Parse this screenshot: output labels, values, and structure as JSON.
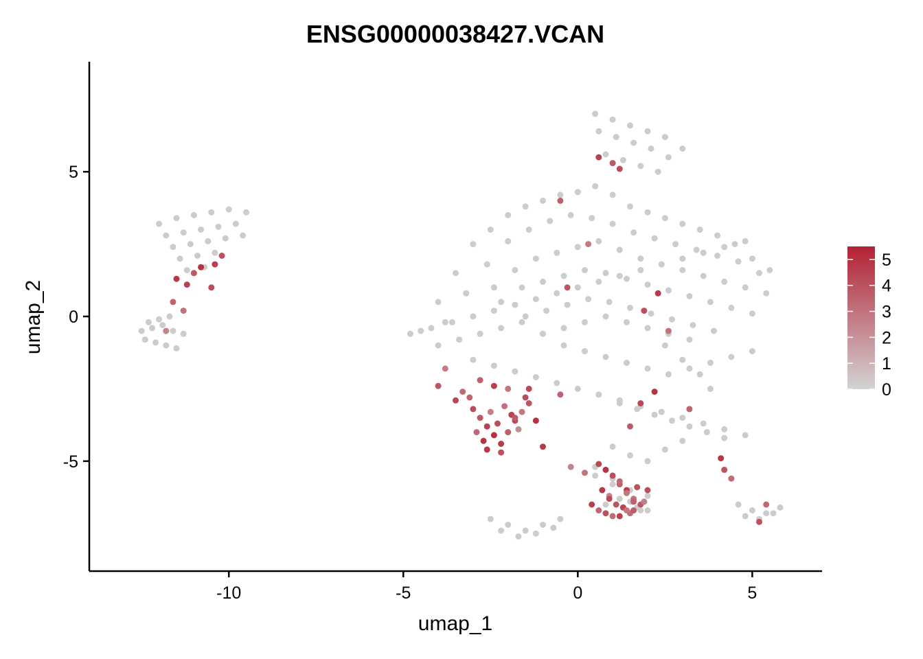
{
  "chart_data": {
    "type": "scatter",
    "title": "ENSG00000038427.VCAN",
    "xlabel": "umap_1",
    "ylabel": "umap_2",
    "xlim": [
      -14.0,
      7.0
    ],
    "ylim": [
      -8.8,
      8.8
    ],
    "x_ticks": [
      -10,
      -5,
      0,
      5
    ],
    "x_tick_labels": [
      "-10",
      "-5",
      "0",
      "5"
    ],
    "y_ticks": [
      -5,
      0,
      5
    ],
    "y_tick_labels": [
      "-5",
      "0",
      "5"
    ],
    "grid": false,
    "legend": {
      "placement": "right",
      "type": "colorbar",
      "min": 0,
      "max": 5.5,
      "ticks": [
        0,
        1,
        2,
        3,
        4,
        5
      ],
      "tick_labels": [
        "0",
        "1",
        "2",
        "3",
        "4",
        "5"
      ],
      "low_color": "#d3d3d3",
      "high_color": "#b22234"
    },
    "colors": {
      "background_point": "#cccccc",
      "high": "#b22234",
      "low": "#d3d3d3"
    },
    "series": [
      {
        "role": "background",
        "x": [
          -12.0,
          -11.5,
          -11.0,
          -10.5,
          -10.0,
          -9.5,
          -11.8,
          -11.3,
          -10.8,
          -10.3,
          -9.8,
          -11.6,
          -11.1,
          -10.6,
          -10.1,
          -9.6,
          -11.4,
          -10.9,
          -10.4,
          -11.2,
          -10.7,
          -12.5,
          -12.2,
          -11.9,
          -11.6,
          -11.3,
          -12.4,
          -12.1,
          -11.8,
          -11.5,
          -12.3,
          -12.0,
          -11.7,
          -4.5,
          -4.0,
          -3.5,
          -3.0,
          -2.5,
          -2.0,
          -1.5,
          -1.0,
          -0.5,
          0.0,
          0.5,
          1.0,
          1.5,
          2.0,
          2.5,
          3.0,
          3.5,
          4.0,
          4.5,
          5.0,
          5.5,
          -3.8,
          -3.2,
          -2.6,
          -2.0,
          -1.4,
          -0.8,
          -0.2,
          0.4,
          1.0,
          1.6,
          2.2,
          2.8,
          3.4,
          4.0,
          4.6,
          5.2,
          -3.0,
          -2.4,
          -1.8,
          -1.2,
          -0.6,
          0.0,
          0.6,
          1.2,
          1.8,
          2.4,
          3.0,
          3.6,
          4.2,
          4.8,
          5.4,
          -2.2,
          -1.6,
          -1.0,
          -0.4,
          0.2,
          0.8,
          1.4,
          2.0,
          2.6,
          3.2,
          3.8,
          4.4,
          5.0,
          -1.5,
          -0.9,
          -0.3,
          0.3,
          0.9,
          1.5,
          2.1,
          2.7,
          3.3,
          3.9,
          -1.0,
          -0.4,
          0.2,
          0.8,
          1.4,
          2.0,
          2.6,
          3.2,
          0.5,
          1.0,
          1.5,
          2.0,
          2.5,
          3.0,
          0.6,
          1.1,
          1.6,
          2.1,
          2.6,
          0.8,
          1.3,
          1.8,
          2.3,
          -4.8,
          -4.2,
          -3.6,
          -3.0,
          -2.4,
          -1.8,
          -1.2,
          -0.6,
          0.0,
          0.6,
          1.2,
          1.8,
          2.4,
          3.0,
          3.6,
          4.2,
          4.8,
          -4.0,
          -3.4,
          -2.8,
          -2.2,
          -1.6,
          -1.0,
          -0.4,
          0.2,
          0.8,
          1.4,
          2.0,
          2.6,
          3.2,
          3.8,
          4.4,
          5.0,
          -3.0,
          -2.4,
          -1.8,
          -1.2,
          -0.6,
          0.0,
          0.6,
          1.2,
          1.8,
          2.4,
          3.0,
          3.6,
          4.2,
          4.8,
          1.0,
          1.5,
          2.0,
          2.5,
          3.0,
          1.2,
          1.7,
          2.2,
          2.7,
          3.2,
          3.7,
          4.2,
          0.5,
          1.0,
          1.5,
          2.0,
          0.8,
          1.3,
          1.8,
          -2.5,
          -2.0,
          -1.5,
          -1.0,
          -0.5,
          -2.2,
          -1.7,
          -1.2,
          -0.7,
          0.5,
          1.0,
          1.5,
          2.0,
          0.7,
          1.2,
          1.7,
          4.6,
          5.0,
          5.4,
          5.8,
          4.8,
          5.2,
          5.6,
          2.5,
          3.0,
          3.5,
          3.8
        ],
        "y": [
          3.2,
          3.4,
          3.5,
          3.6,
          3.7,
          3.6,
          2.8,
          2.9,
          3.0,
          3.1,
          3.2,
          2.4,
          2.5,
          2.6,
          2.7,
          2.8,
          2.0,
          2.1,
          2.2,
          1.6,
          1.7,
          -0.5,
          -0.4,
          -0.3,
          -0.5,
          -0.6,
          -0.8,
          -0.9,
          -1.0,
          -1.1,
          -0.2,
          -0.1,
          0.0,
          -0.5,
          0.5,
          1.5,
          2.5,
          3.0,
          3.5,
          3.8,
          4.0,
          4.2,
          4.3,
          4.5,
          4.2,
          3.8,
          3.6,
          3.4,
          3.2,
          3.0,
          2.8,
          2.5,
          2.0,
          1.6,
          -0.2,
          0.8,
          1.8,
          2.6,
          3.0,
          3.3,
          3.5,
          3.4,
          3.2,
          2.9,
          2.7,
          2.5,
          2.3,
          2.1,
          1.9,
          1.5,
          0.0,
          1.0,
          1.6,
          2.0,
          2.2,
          2.4,
          2.6,
          2.3,
          2.0,
          1.8,
          1.6,
          1.4,
          1.2,
          1.0,
          0.8,
          0.5,
          1.0,
          1.2,
          1.4,
          1.6,
          1.5,
          1.3,
          1.1,
          0.9,
          0.7,
          0.5,
          0.3,
          0.1,
          0.0,
          0.2,
          0.4,
          0.6,
          0.5,
          0.3,
          0.1,
          -0.1,
          -0.3,
          -0.5,
          -0.6,
          -0.4,
          -0.2,
          0.0,
          -0.2,
          -0.4,
          -0.6,
          -0.8,
          7.0,
          6.8,
          6.6,
          6.4,
          6.2,
          5.8,
          6.4,
          6.2,
          6.0,
          5.8,
          5.5,
          5.6,
          5.4,
          5.2,
          5.0,
          -0.6,
          -0.4,
          -0.2,
          0.0,
          0.2,
          0.4,
          0.6,
          0.8,
          1.0,
          1.2,
          1.4,
          1.6,
          1.8,
          2.0,
          2.2,
          2.4,
          2.6,
          -1.0,
          -0.8,
          -0.6,
          -0.4,
          -0.2,
          -0.6,
          -1.0,
          -1.2,
          -1.4,
          -1.6,
          -1.8,
          -2.0,
          -1.8,
          -1.6,
          -1.4,
          -1.2,
          -1.5,
          -1.7,
          -1.9,
          -2.1,
          -2.3,
          -2.5,
          -2.7,
          -2.9,
          -3.1,
          -3.3,
          -3.5,
          -3.7,
          -3.9,
          -4.1,
          -4.5,
          -4.8,
          -5.0,
          -4.6,
          -4.3,
          -3.0,
          -3.2,
          -3.4,
          -3.6,
          -3.8,
          -4.0,
          -4.2,
          -5.5,
          -5.8,
          -6.0,
          -6.2,
          -6.5,
          -6.6,
          -6.7,
          -7.0,
          -7.2,
          -7.4,
          -7.2,
          -7.0,
          -7.4,
          -7.6,
          -7.5,
          -7.3,
          -5.2,
          -5.6,
          -6.4,
          -6.7,
          -6.0,
          -6.3,
          -6.6,
          -6.5,
          -6.7,
          -6.8,
          -6.6,
          -6.9,
          -7.0,
          -6.8,
          -1.0,
          -1.5,
          -2.0,
          -2.5
        ]
      },
      {
        "role": "expressing",
        "x": [
          -11.5,
          -11.2,
          -10.8,
          -10.5,
          -10.2,
          -11.0,
          -11.6,
          -11.3,
          -11.8,
          -10.4,
          -3.0,
          -2.8,
          -2.6,
          -2.4,
          -2.2,
          -2.0,
          -1.8,
          -1.6,
          -1.4,
          -2.9,
          -2.7,
          -2.5,
          -2.3,
          -2.1,
          -1.9,
          -1.7,
          -3.1,
          -2.6,
          -2.2,
          -1.8,
          -2.4,
          -2.0,
          -2.8,
          -1.5,
          -1.2,
          -3.3,
          -3.5,
          -3.8,
          -4.0,
          -1.0,
          -0.5,
          0.8,
          1.0,
          1.2,
          1.4,
          1.6,
          1.8,
          0.6,
          0.9,
          1.1,
          1.3,
          1.5,
          1.7,
          1.9,
          0.7,
          1.2,
          1.6,
          0.9,
          1.4,
          0.4,
          0.6,
          0.8,
          1.0,
          1.2,
          1.4,
          1.6,
          2.0,
          0.2,
          -0.2,
          2.2,
          1.8,
          1.5,
          4.1,
          4.2,
          4.4,
          5.4,
          5.2,
          0.6,
          1.0,
          1.2,
          -0.5,
          0.3,
          -0.3,
          1.9,
          2.3,
          2.6,
          3.2,
          -1.4
        ],
        "y": [
          1.3,
          1.1,
          1.7,
          1.0,
          2.1,
          1.5,
          0.5,
          0.2,
          -0.5,
          1.8,
          -3.2,
          -3.5,
          -3.8,
          -4.1,
          -4.4,
          -4.0,
          -3.6,
          -3.3,
          -3.0,
          -4.0,
          -4.3,
          -3.3,
          -3.7,
          -3.1,
          -3.4,
          -3.9,
          -2.8,
          -4.6,
          -4.7,
          -3.5,
          -2.4,
          -2.5,
          -2.2,
          -2.8,
          -3.6,
          -2.6,
          -2.9,
          -1.8,
          -2.4,
          -4.5,
          -2.7,
          -5.3,
          -5.5,
          -5.8,
          -6.0,
          -6.3,
          -6.5,
          -5.1,
          -6.2,
          -6.5,
          -6.6,
          -6.8,
          -5.9,
          -6.4,
          -6.0,
          -5.7,
          -6.7,
          -6.3,
          -6.1,
          -6.5,
          -6.7,
          -6.8,
          -6.9,
          -6.9,
          -6.7,
          -6.4,
          -6.0,
          -5.4,
          -5.2,
          -2.6,
          -3.0,
          -3.8,
          -4.9,
          -5.3,
          -5.6,
          -6.5,
          -7.1,
          5.5,
          5.3,
          5.1,
          4.0,
          2.5,
          1.0,
          0.2,
          0.8,
          -0.5,
          -3.2,
          -2.5
        ],
        "values": [
          4.8,
          4.5,
          5.0,
          4.2,
          4.0,
          3.8,
          3.5,
          3.0,
          2.5,
          4.6,
          4.2,
          3.8,
          4.5,
          5.0,
          4.7,
          3.6,
          4.3,
          2.8,
          3.9,
          3.3,
          4.9,
          2.6,
          4.1,
          3.0,
          4.4,
          2.2,
          3.4,
          4.8,
          4.0,
          3.7,
          4.6,
          2.9,
          3.5,
          4.2,
          5.0,
          3.2,
          4.4,
          2.7,
          3.9,
          4.8,
          3.5,
          4.9,
          4.1,
          3.6,
          4.7,
          3.0,
          3.8,
          4.3,
          2.4,
          3.9,
          4.5,
          3.1,
          4.0,
          2.6,
          4.8,
          3.3,
          3.7,
          4.2,
          2.9,
          4.6,
          3.4,
          4.0,
          3.2,
          4.4,
          2.8,
          3.6,
          4.1,
          3.0,
          2.5,
          4.9,
          4.3,
          3.7,
          4.8,
          3.9,
          3.2,
          3.4,
          4.0,
          4.5,
          3.8,
          4.2,
          3.6,
          2.8,
          3.9,
          4.1,
          4.7,
          3.0,
          3.5,
          4.3
        ]
      }
    ]
  }
}
